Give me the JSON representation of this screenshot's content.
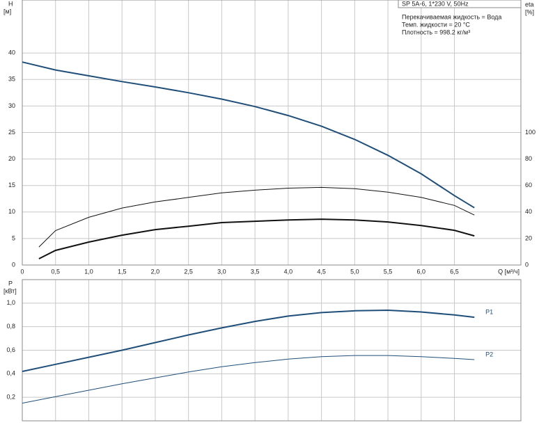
{
  "chart_data": [
    {
      "type": "line",
      "ylabel": "H",
      "yunit": "[м]",
      "y2label": "eta",
      "y2unit": "[%]",
      "xlabel": "Q [м³/ч]",
      "info": [
        "SP 5A-6, 1*230 V, 50Hz",
        "Перекачиваемая жидкость = Вода",
        "Темп. жидкости = 20 °C",
        "Плотность = 998.2 кг/м³"
      ],
      "xlim": [
        0,
        7.5
      ],
      "xticks": [
        0,
        {
          "value": 0.5,
          "label": "0,5"
        },
        {
          "value": 1,
          "label": "1,0"
        },
        {
          "value": 1.5,
          "label": "1,5"
        },
        {
          "value": 2,
          "label": "2,0"
        },
        {
          "value": 2.5,
          "label": "2,5"
        },
        {
          "value": 3,
          "label": "3,0"
        },
        {
          "value": 3.5,
          "label": "3,5"
        },
        {
          "value": 4,
          "label": "4,0"
        },
        {
          "value": 4.5,
          "label": "4,5"
        },
        {
          "value": 5,
          "label": "5,0"
        },
        {
          "value": 5.5,
          "label": "5,5"
        },
        {
          "value": 6,
          "label": "6,0"
        },
        {
          "value": 6.5,
          "label": "6,5"
        }
      ],
      "ylim": [
        0,
        50
      ],
      "yticks": [
        0,
        5,
        10,
        15,
        20,
        25,
        30,
        35,
        40
      ],
      "y2lim": [
        0,
        200
      ],
      "y2ticks": [
        0,
        20,
        40,
        60,
        80,
        100
      ],
      "grid": true,
      "series": [
        {
          "color": "#1f4e79",
          "width": 2,
          "x": [
            0,
            0.5,
            1,
            1.5,
            2,
            2.5,
            3,
            3.5,
            4,
            4.5,
            5,
            5.5,
            6,
            6.5,
            6.8
          ],
          "values": [
            38.3,
            36.8,
            35.7,
            34.6,
            33.6,
            32.5,
            31.3,
            29.9,
            28.2,
            26.2,
            23.7,
            20.7,
            17.2,
            13.1,
            10.8
          ]
        },
        {
          "color": "#111111",
          "width": 1,
          "axis": "y2",
          "x": [
            0.25,
            0.5,
            1,
            1.5,
            2,
            2.5,
            3,
            3.5,
            4,
            4.5,
            5,
            5.5,
            6,
            6.5,
            6.8
          ],
          "values": [
            13.6,
            26,
            36,
            43,
            47.6,
            51,
            54.5,
            56.5,
            58,
            58.6,
            57.6,
            55,
            51,
            45,
            37.7
          ]
        },
        {
          "color": "#111111",
          "width": 2,
          "axis": "y2",
          "x": [
            0.25,
            0.5,
            1,
            1.5,
            2,
            2.5,
            3,
            3.5,
            4,
            4.5,
            5,
            5.5,
            6,
            6.5,
            6.8
          ],
          "values": [
            4.7,
            11,
            17.3,
            22.5,
            26.7,
            29.3,
            32,
            33,
            34,
            34.6,
            34,
            32.5,
            29.8,
            26.2,
            22
          ]
        }
      ]
    },
    {
      "type": "line",
      "ylabel": "P",
      "yunit": "[кВт]",
      "xlim": [
        0,
        7.5
      ],
      "xticks": [
        0,
        0.5,
        1,
        1.5,
        2,
        2.5,
        3,
        3.5,
        4,
        4.5,
        5,
        5.5,
        6,
        6.5
      ],
      "ylim": [
        0,
        1.2
      ],
      "yticks": [
        {
          "value": 0.2,
          "label": "0,2"
        },
        {
          "value": 0.4,
          "label": "0,4"
        },
        {
          "value": 0.6,
          "label": "0,6"
        },
        {
          "value": 0.8,
          "label": "0,8"
        },
        {
          "value": 1,
          "label": "1,0"
        }
      ],
      "grid": true,
      "series": [
        {
          "name": "P1",
          "color": "#1f4e79",
          "width": 2,
          "x": [
            0,
            0.5,
            1,
            1.5,
            2,
            2.5,
            3,
            3.5,
            4,
            4.5,
            5,
            5.5,
            6,
            6.5,
            6.8
          ],
          "values": [
            0.42,
            0.48,
            0.54,
            0.6,
            0.665,
            0.73,
            0.79,
            0.845,
            0.89,
            0.92,
            0.935,
            0.94,
            0.925,
            0.9,
            0.88
          ]
        },
        {
          "name": "P2",
          "color": "#1f4e79",
          "width": 1,
          "x": [
            0,
            0.5,
            1,
            1.5,
            2,
            2.5,
            3,
            3.5,
            4,
            4.5,
            5,
            5.5,
            6,
            6.5,
            6.8
          ],
          "values": [
            0.15,
            0.205,
            0.26,
            0.315,
            0.365,
            0.415,
            0.46,
            0.495,
            0.525,
            0.545,
            0.555,
            0.555,
            0.545,
            0.53,
            0.52
          ]
        }
      ]
    }
  ]
}
